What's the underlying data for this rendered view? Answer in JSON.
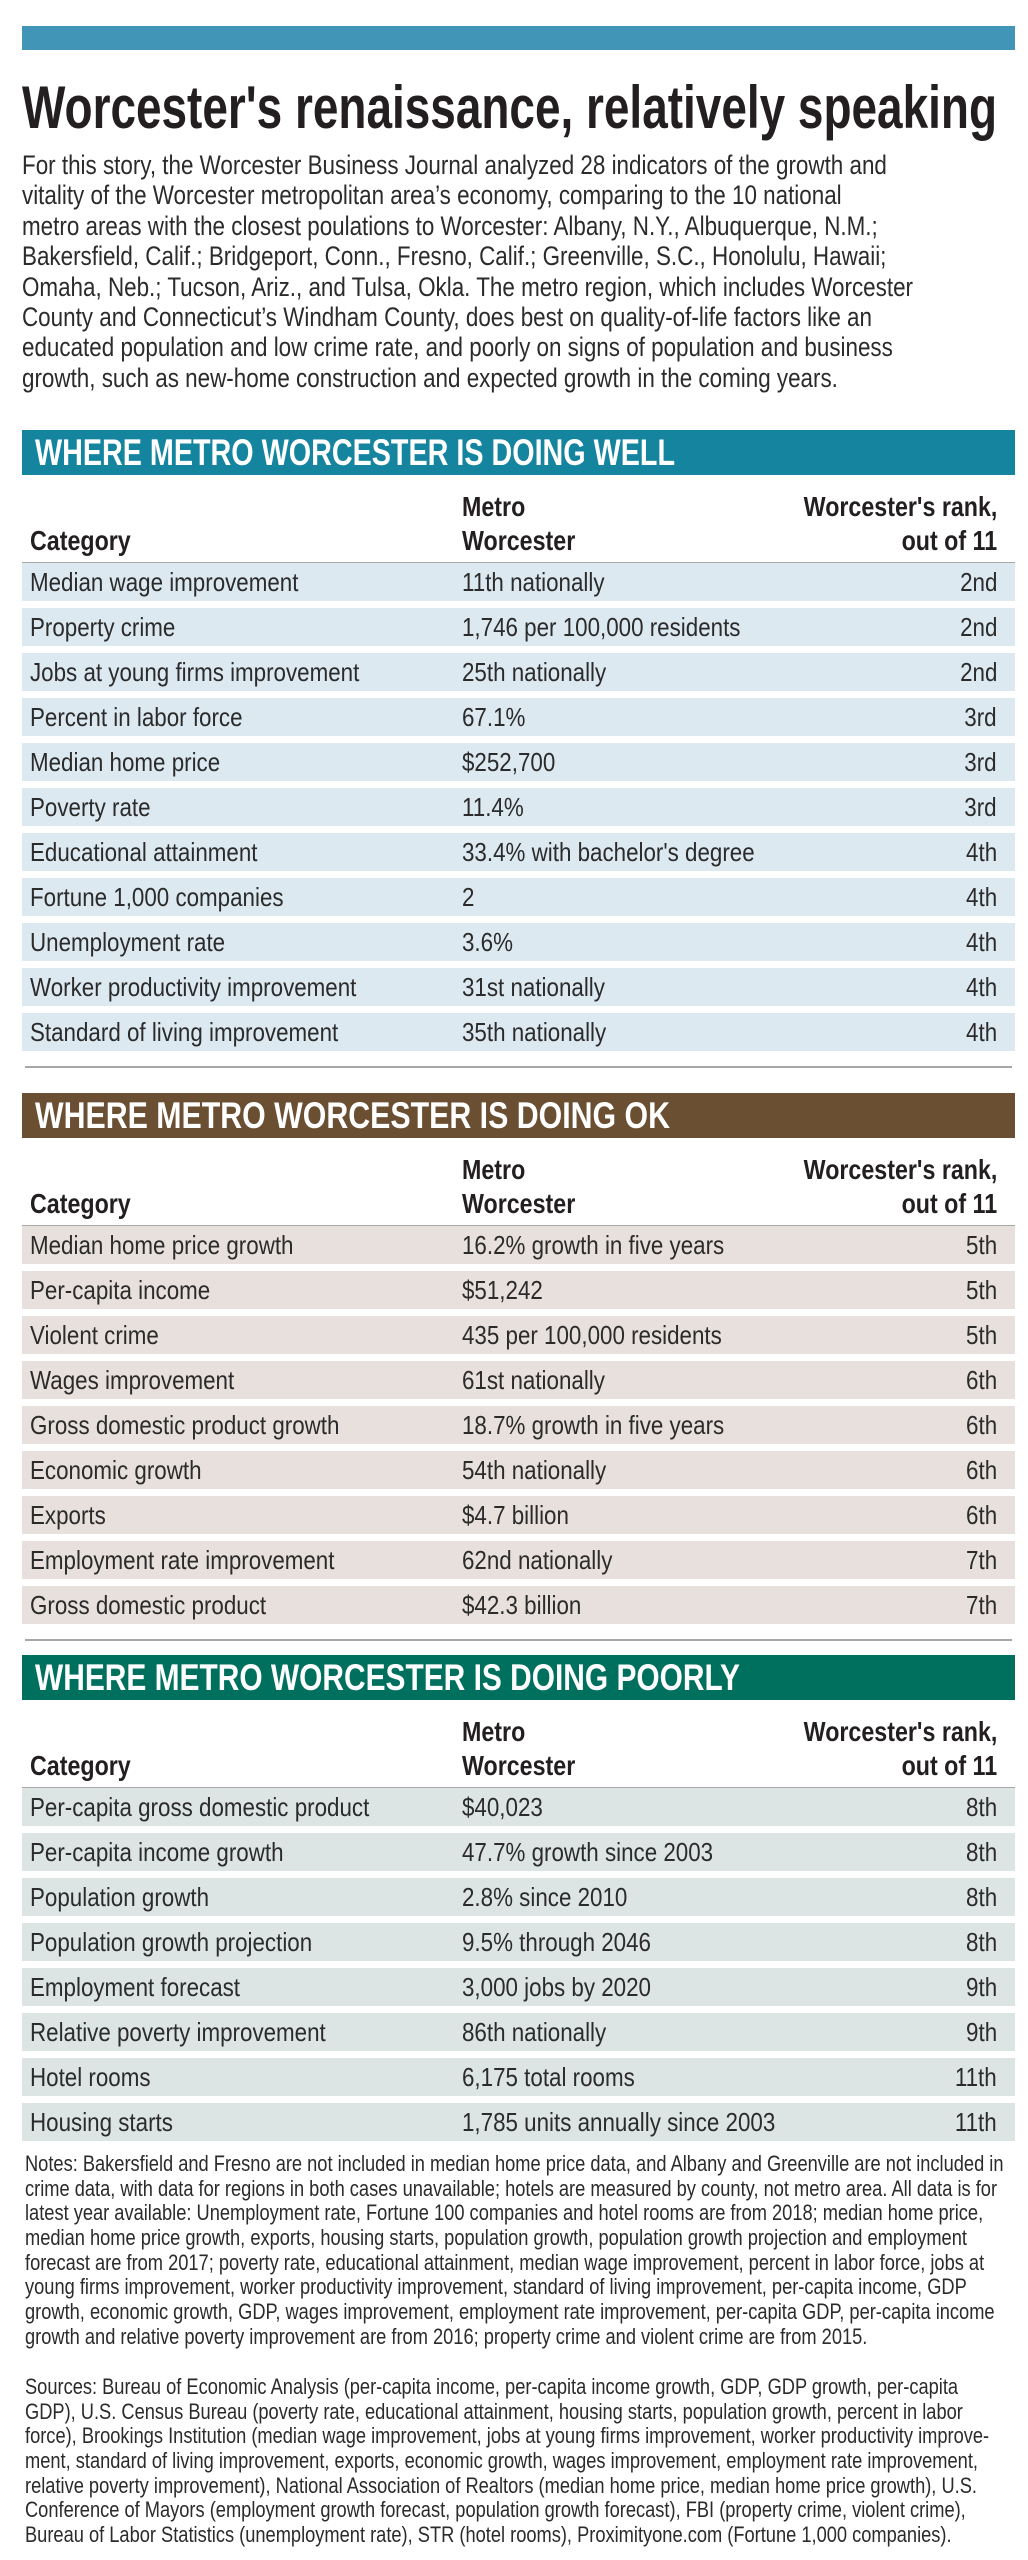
{
  "colors": {
    "top_bar": "#4196b8",
    "well": "#14849f",
    "ok": "#6b4f33",
    "poorly": "#00705e"
  },
  "title": "Worcester's renaissance, relatively speaking",
  "intro_lines": [
    "For this story, the Worcester Business Journal analyzed 28 indicators of the growth and",
    "vitality of the Worcester metropolitan area’s economy, comparing to the 10 national",
    "metro areas with the closest poulations to Worcester: Albany, N.Y., Albuquerque, N.M.;",
    "Bakersfield, Calif.; Bridgeport, Conn., Fresno, Calif.; Greenville, S.C., Honolulu, Hawaii;",
    "Omaha, Neb.; Tucson, Ariz., and Tulsa, Okla. The metro region, which includes Worcester",
    "County and Connecticut’s Windham County, does best on quality-of-life factors like an",
    "educated population and low crime rate, and poorly on signs of population and business",
    "growth, such as new-home construction and expected growth in the coming years."
  ],
  "columns": {
    "category": "Category",
    "metro_1": "Metro",
    "metro_2": "Worcester",
    "rank_1": "Worcester's rank,",
    "rank_2": "out of 11"
  },
  "sections": [
    {
      "heading": "WHERE METRO WORCESTER IS DOING WELL",
      "rows": [
        [
          "Median wage improvement",
          "11th nationally",
          "2nd"
        ],
        [
          "Property crime",
          "1,746 per 100,000 residents",
          "2nd"
        ],
        [
          "Jobs at young firms improvement",
          "25th nationally",
          "2nd"
        ],
        [
          "Percent in labor force",
          "67.1%",
          "3rd"
        ],
        [
          "Median home price",
          "$252,700",
          "3rd"
        ],
        [
          "Poverty rate",
          "11.4%",
          "3rd"
        ],
        [
          "Educational attainment",
          "33.4% with bachelor's degree",
          "4th"
        ],
        [
          "Fortune 1,000 companies",
          "2",
          "4th"
        ],
        [
          "Unemployment rate",
          "3.6%",
          "4th"
        ],
        [
          "Worker productivity improvement",
          "31st nationally",
          "4th"
        ],
        [
          "Standard of living improvement",
          "35th nationally",
          "4th"
        ]
      ]
    },
    {
      "heading": "WHERE METRO WORCESTER IS DOING OK",
      "rows": [
        [
          "Median home price growth",
          "16.2% growth in five years",
          "5th"
        ],
        [
          "Per-capita income",
          "$51,242",
          "5th"
        ],
        [
          "Violent crime",
          "435 per 100,000 residents",
          "5th"
        ],
        [
          "Wages improvement",
          "61st nationally",
          "6th"
        ],
        [
          "Gross domestic product growth",
          "18.7% growth in five years",
          "6th"
        ],
        [
          "Economic growth",
          "54th nationally",
          "6th"
        ],
        [
          "Exports",
          "$4.7 billion",
          "6th"
        ],
        [
          "Employment rate improvement",
          "62nd nationally",
          "7th"
        ],
        [
          "Gross domestic product",
          "$42.3 billion",
          "7th"
        ]
      ]
    },
    {
      "heading": "WHERE METRO WORCESTER IS DOING POORLY",
      "rows": [
        [
          "Per-capita gross domestic product",
          "$40,023",
          "8th"
        ],
        [
          "Per-capita income growth",
          "47.7% growth since 2003",
          "8th"
        ],
        [
          "Population growth",
          "2.8% since 2010",
          "8th"
        ],
        [
          "Population growth projection",
          "9.5% through 2046",
          "8th"
        ],
        [
          "Employment forecast",
          "3,000 jobs by 2020",
          "9th"
        ],
        [
          "Relative poverty improvement",
          "86th nationally",
          "9th"
        ],
        [
          "Hotel rooms",
          "6,175 total rooms",
          "11th"
        ],
        [
          "Housing starts",
          "1,785 units annually since 2003",
          "11th"
        ]
      ]
    }
  ],
  "notes_lines": [
    "Notes: Bakersfield and Fresno are not included in median home price data, and Albany and Greenville are not included in",
    "crime data, with data for regions in both cases unavailable; hotels are measured by county, not metro area. All data is for",
    "latest year available: Unemployment rate, Fortune 100 companies and hotel rooms are from 2018; median home price,",
    "median home price growth, exports, housing starts, population growth, population growth projection and employment",
    "forecast are from 2017; poverty rate, educational attainment, median wage improvement, percent in labor force, jobs at",
    "young firms improvement, worker productivity improvement, standard of living improvement, per-capita income, GDP",
    "growth, economic growth, GDP, wages improvement, employment rate improvement, per-capita GDP, per-capita income",
    "growth and relative poverty improvement are from 2016; property crime and violent crime are from 2015."
  ],
  "sources_lines": [
    "Sources: Bureau of Economic Analysis (per-capita income, per-capita income growth, GDP, GDP growth, per-capita",
    "GDP), U.S. Census Bureau (poverty rate, educational attainment, housing starts, population growth, percent in labor",
    "force), Brookings Institution (median wage improvement, jobs at young firms improvement, worker productivity improve-",
    "ment, standard of living improvement, exports, economic growth, wages improvement, employment rate improvement,",
    "relative poverty improvement), National Association of Realtors (median home price, median home price growth), U.S.",
    "Conference of Mayors (employment growth forecast, population growth forecast), FBI (property crime, violent crime),",
    "Bureau of Labor Statistics (unemployment rate), STR (hotel rooms), Proximityone.com (Fortune 1,000 companies)."
  ]
}
